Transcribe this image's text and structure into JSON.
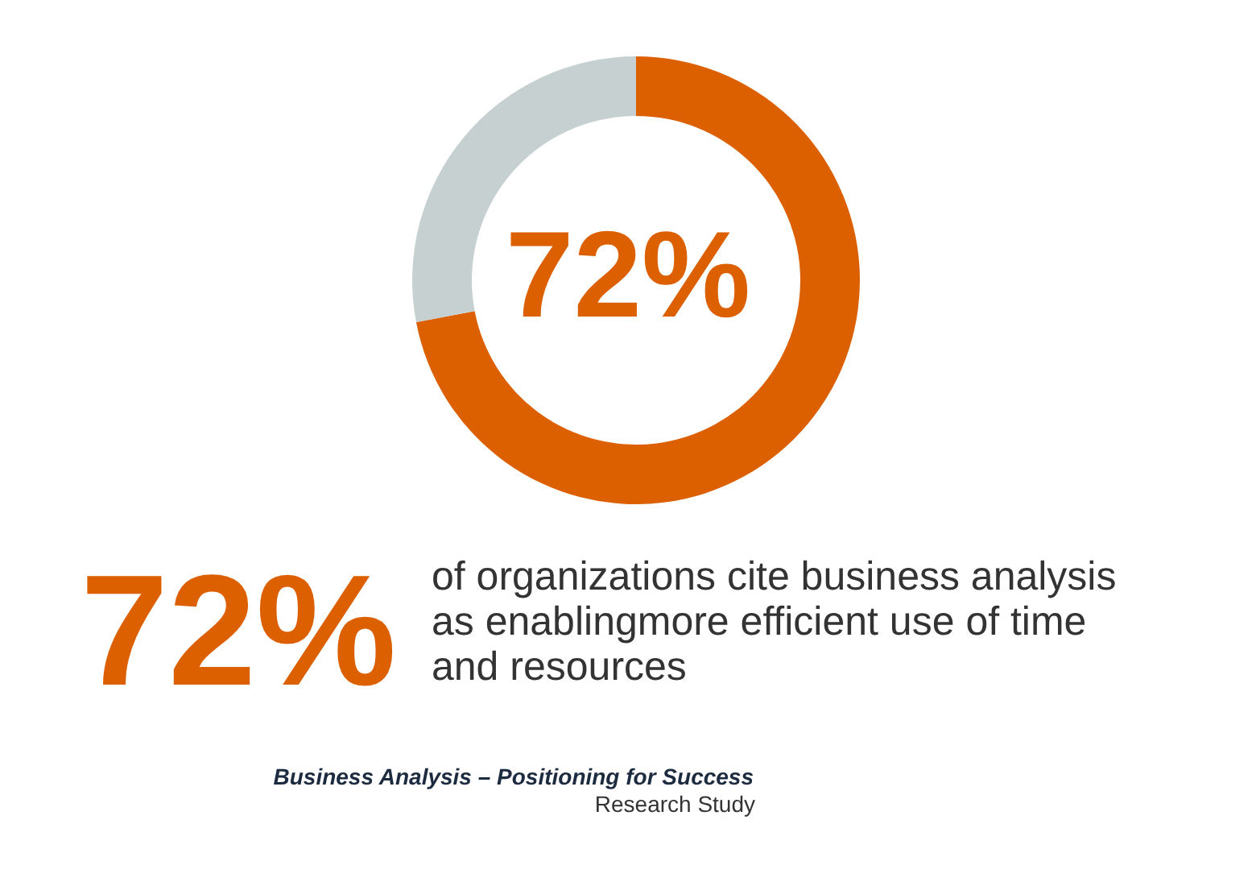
{
  "chart_data": {
    "type": "donut",
    "categories": [
      null,
      null
    ],
    "values": [
      72,
      28
    ],
    "colors": [
      "#dc5f00",
      "#c6d0d0"
    ],
    "annotations": [
      "72%",
      "72%",
      "of organizations cite business analysis as enablingmore efficient use of time and resources",
      "Business Analysis – Positioning for Success",
      "Research Study"
    ]
  }
}
